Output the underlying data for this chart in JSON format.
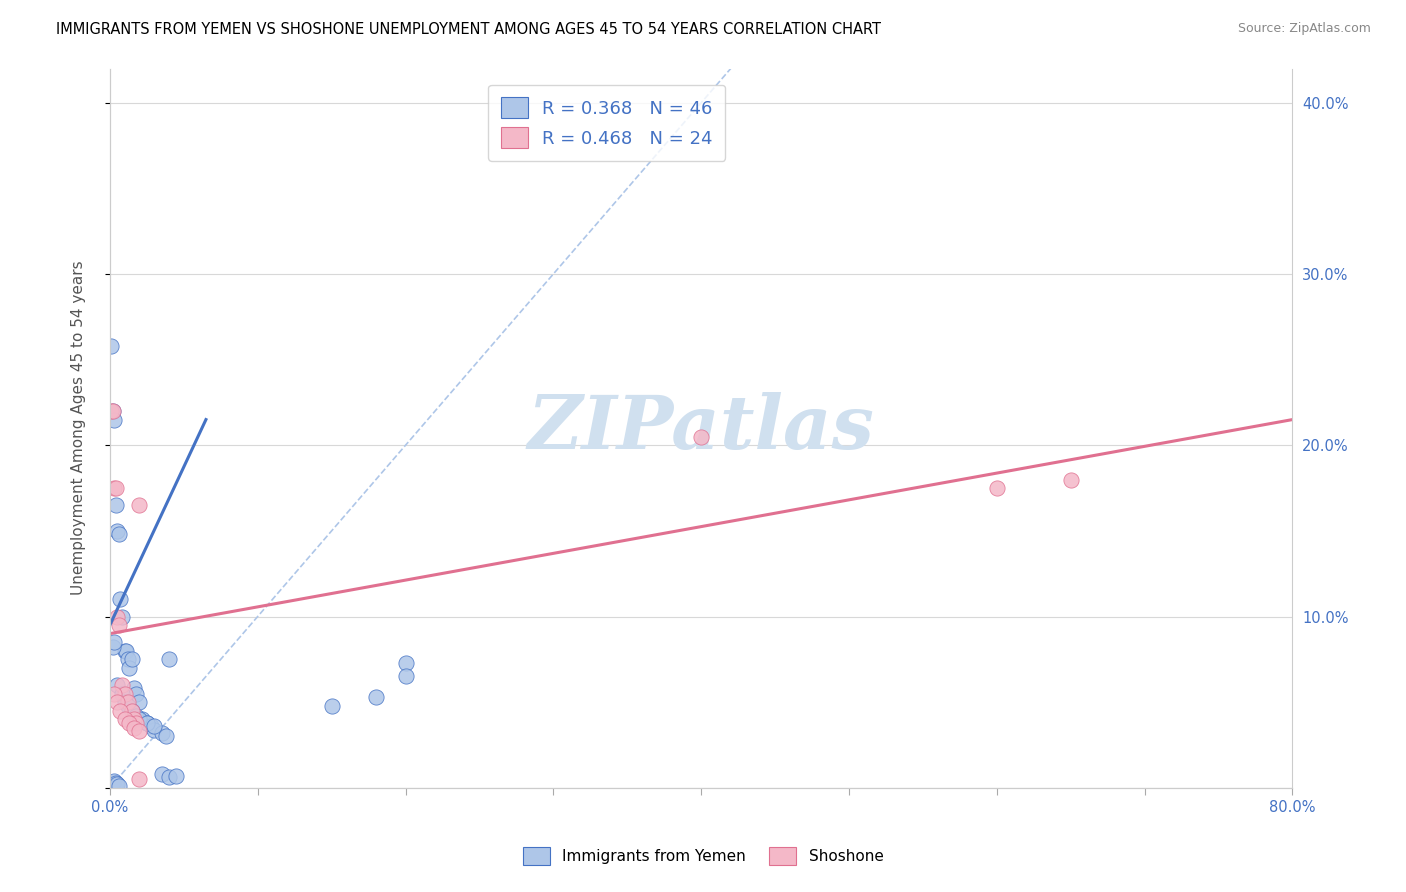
{
  "title": "IMMIGRANTS FROM YEMEN VS SHOSHONE UNEMPLOYMENT AMONG AGES 45 TO 54 YEARS CORRELATION CHART",
  "source": "Source: ZipAtlas.com",
  "ylabel": "Unemployment Among Ages 45 to 54 years",
  "xlim": [
    0.0,
    0.8
  ],
  "ylim": [
    0.0,
    0.42
  ],
  "blue_R": 0.368,
  "blue_N": 46,
  "pink_R": 0.468,
  "pink_N": 24,
  "blue_color": "#aec6e8",
  "pink_color": "#f4b8c8",
  "blue_line_color": "#4472c4",
  "pink_line_color": "#e07090",
  "diag_color": "#aec6e8",
  "watermark_color": "#d0e0ef",
  "legend_label_blue": "Immigrants from Yemen",
  "legend_label_pink": "Shoshone",
  "blue_line": [
    [
      0.0,
      0.095
    ],
    [
      0.065,
      0.215
    ]
  ],
  "pink_line": [
    [
      0.0,
      0.09
    ],
    [
      0.8,
      0.215
    ]
  ],
  "diag_line": [
    [
      0.0,
      0.0
    ],
    [
      0.42,
      0.42
    ]
  ],
  "blue_dots_x": [
    0.001,
    0.002,
    0.003,
    0.004,
    0.005,
    0.006,
    0.007,
    0.008,
    0.01,
    0.011,
    0.012,
    0.013,
    0.015,
    0.016,
    0.018,
    0.02,
    0.022,
    0.025,
    0.028,
    0.03,
    0.035,
    0.038,
    0.002,
    0.003,
    0.005,
    0.008,
    0.01,
    0.012,
    0.015,
    0.018,
    0.02,
    0.025,
    0.03,
    0.035,
    0.04,
    0.045,
    0.002,
    0.003,
    0.004,
    0.005,
    0.006,
    0.2,
    0.2,
    0.15,
    0.18,
    0.04
  ],
  "blue_dots_y": [
    0.258,
    0.22,
    0.215,
    0.165,
    0.15,
    0.148,
    0.11,
    0.1,
    0.08,
    0.08,
    0.075,
    0.07,
    0.075,
    0.058,
    0.055,
    0.05,
    0.04,
    0.038,
    0.036,
    0.034,
    0.032,
    0.03,
    0.082,
    0.085,
    0.06,
    0.055,
    0.05,
    0.048,
    0.045,
    0.042,
    0.04,
    0.038,
    0.036,
    0.008,
    0.006,
    0.007,
    0.003,
    0.004,
    0.003,
    0.002,
    0.001,
    0.073,
    0.065,
    0.048,
    0.053,
    0.075
  ],
  "pink_dots_x": [
    0.001,
    0.002,
    0.003,
    0.004,
    0.005,
    0.006,
    0.008,
    0.01,
    0.012,
    0.015,
    0.016,
    0.018,
    0.02,
    0.003,
    0.005,
    0.007,
    0.01,
    0.013,
    0.016,
    0.02,
    0.4,
    0.6,
    0.65,
    0.02
  ],
  "pink_dots_y": [
    0.22,
    0.22,
    0.175,
    0.175,
    0.1,
    0.095,
    0.06,
    0.055,
    0.05,
    0.045,
    0.04,
    0.038,
    0.165,
    0.055,
    0.05,
    0.045,
    0.04,
    0.038,
    0.035,
    0.033,
    0.205,
    0.175,
    0.18,
    0.005
  ]
}
